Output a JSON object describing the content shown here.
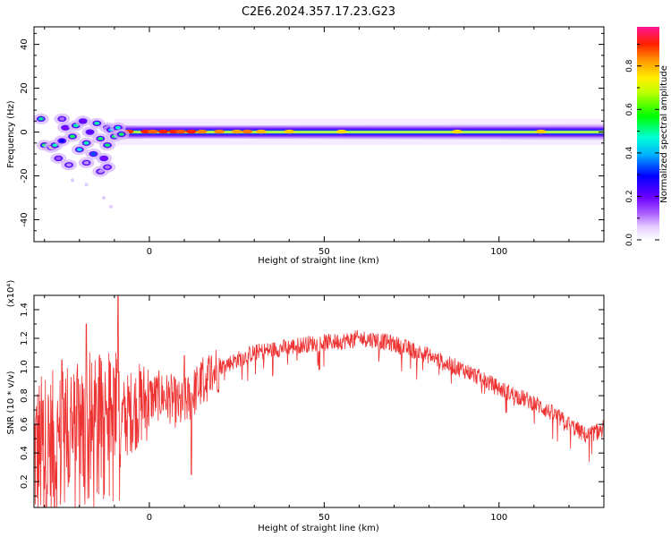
{
  "title": "C2E6.2024.357.17.23.G23",
  "chart_data": [
    {
      "type": "heatmap",
      "title": "C2E6.2024.357.17.23.G23",
      "xlabel": "Height of straight line (km)",
      "ylabel": "Frequency (Hz)",
      "xlim": [
        -33,
        130
      ],
      "ylim": [
        -50,
        48
      ],
      "xticks": [
        0,
        50,
        100
      ],
      "yticks": [
        -40,
        -20,
        0,
        20,
        40
      ],
      "colorbar": {
        "label": "Normalized spectral amplitude",
        "range": [
          0,
          0.98
        ],
        "ticks": [
          0.0,
          0.2,
          0.4,
          0.6,
          0.8
        ],
        "tick_labels": [
          "0.0",
          "0.2",
          "0.4",
          "0.6",
          "0.8"
        ],
        "colormap": [
          "#ffffff",
          "#d9b3ff",
          "#9b30ff",
          "#5a00ff",
          "#0000ff",
          "#00bfff",
          "#00ffcc",
          "#00ff00",
          "#ffff00",
          "#ff9900",
          "#ff0000",
          "#ff1493"
        ]
      },
      "description_values": {
        "band_center_hz": 0,
        "band_halfwidth_hz": 2.5,
        "scattered_region_x": [
          -33,
          -10
        ],
        "scattered_region_hz": [
          -20,
          8
        ]
      }
    },
    {
      "type": "line",
      "xlabel": "Height of straight line (km)",
      "ylabel": "SNR (10 * v/v)",
      "y_multiplier": "(x10⁴)",
      "xlim": [
        -33,
        130
      ],
      "ylim": [
        0.02,
        1.5
      ],
      "xticks": [
        0,
        50,
        100
      ],
      "yticks": [
        0.2,
        0.4,
        0.6,
        0.8,
        1.0,
        1.2,
        1.4
      ],
      "ytick_labels": [
        "0.2",
        "0.4",
        "0.6",
        "0.8",
        "1.0",
        "1.2",
        "1.4"
      ],
      "color": "#ee3333",
      "envelope": {
        "x": [
          -33,
          -25,
          -18,
          -12,
          -8,
          -5,
          -2,
          0,
          3,
          6,
          9,
          12,
          16,
          20,
          25,
          30,
          35,
          40,
          45,
          50,
          55,
          60,
          65,
          70,
          75,
          80,
          85,
          90,
          95,
          100,
          105,
          110,
          115,
          120,
          125,
          130
        ],
        "y": [
          0.4,
          0.45,
          0.5,
          0.55,
          0.62,
          0.7,
          0.75,
          0.78,
          0.8,
          0.78,
          0.72,
          0.8,
          0.92,
          1.0,
          1.05,
          1.1,
          1.12,
          1.14,
          1.16,
          1.17,
          1.18,
          1.2,
          1.19,
          1.16,
          1.12,
          1.08,
          1.02,
          0.98,
          0.92,
          0.85,
          0.8,
          0.75,
          0.68,
          0.6,
          0.52,
          0.57
        ]
      },
      "spikes": [
        {
          "x": -9,
          "y": 1.5
        },
        {
          "x": -25,
          "y": 1.05
        },
        {
          "x": -18,
          "y": 1.3
        },
        {
          "x": 12,
          "y": 0.25
        },
        {
          "x": 10,
          "y": 1.08
        }
      ]
    }
  ]
}
